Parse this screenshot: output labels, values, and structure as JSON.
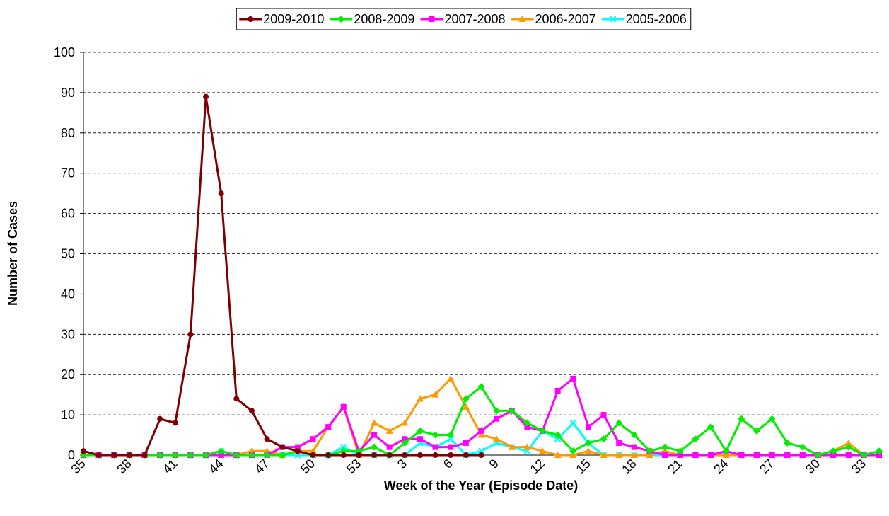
{
  "chart_data": {
    "type": "line",
    "x_label": "Week of the Year (Episode Date)",
    "y_label": "Number of Cases",
    "categories": [
      "35",
      null,
      null,
      "38",
      null,
      null,
      "41",
      null,
      null,
      "44",
      null,
      null,
      "47",
      null,
      null,
      "50",
      null,
      null,
      "53",
      null,
      null,
      "3",
      null,
      null,
      "6",
      null,
      null,
      "9",
      null,
      null,
      "12",
      null,
      null,
      "15",
      null,
      null,
      "18",
      null,
      null,
      "21",
      null,
      null,
      "24",
      null,
      null,
      "27",
      null,
      null,
      "30",
      null,
      null,
      "33",
      null
    ],
    "series": [
      {
        "name": "2009-2010",
        "color": "#800000",
        "marker": "circle",
        "values": [
          1,
          0,
          0,
          0,
          0,
          9,
          8,
          30,
          89,
          65,
          14,
          11,
          4,
          2,
          1,
          0,
          0,
          0,
          0,
          0,
          0,
          0,
          0,
          0,
          0,
          0,
          0,
          null,
          null,
          null,
          null,
          null,
          null,
          null,
          null,
          null,
          null,
          null,
          null,
          null,
          null,
          null,
          null,
          null,
          null,
          null,
          null,
          null,
          null,
          null,
          null,
          null,
          null
        ]
      },
      {
        "name": "2008-2009",
        "color": "#00ee00",
        "marker": "diamond",
        "values": [
          0,
          0,
          0,
          0,
          0,
          0,
          0,
          0,
          0,
          1,
          0,
          0,
          0,
          0,
          1,
          0,
          0,
          1,
          1,
          2,
          0,
          3,
          6,
          5,
          5,
          14,
          17,
          11,
          11,
          8,
          6,
          5,
          1,
          3,
          4,
          8,
          5,
          1,
          2,
          1,
          4,
          7,
          1,
          9,
          6,
          9,
          3,
          2,
          0,
          1,
          2,
          0,
          1
        ]
      },
      {
        "name": "2007-2008",
        "color": "#ff00ff",
        "marker": "square",
        "values": [
          0,
          0,
          0,
          0,
          0,
          0,
          0,
          0,
          0,
          0,
          0,
          0,
          0,
          2,
          2,
          4,
          7,
          12,
          1,
          5,
          2,
          4,
          4,
          2,
          2,
          3,
          6,
          9,
          11,
          7,
          6,
          16,
          19,
          7,
          10,
          3,
          2,
          1,
          0,
          0,
          0,
          0,
          1,
          0,
          0,
          0,
          0,
          0,
          0,
          0,
          0,
          0,
          0
        ]
      },
      {
        "name": "2006-2007",
        "color": "#ff9900",
        "marker": "triangle",
        "values": [
          0,
          0,
          0,
          0,
          0,
          0,
          0,
          0,
          0,
          0,
          0,
          1,
          1,
          0,
          1,
          1,
          7,
          12,
          0,
          8,
          6,
          8,
          14,
          15,
          19,
          12,
          5,
          4,
          2,
          2,
          1,
          0,
          0,
          1,
          0,
          0,
          0,
          0,
          1,
          0,
          0,
          0,
          0,
          0,
          0,
          0,
          0,
          0,
          0,
          1,
          3,
          0,
          0
        ]
      },
      {
        "name": "2005-2006",
        "color": "#00ffff",
        "marker": "x",
        "values": [
          0,
          0,
          0,
          0,
          0,
          0,
          0,
          0,
          0,
          1,
          0,
          0,
          0,
          0,
          0,
          0,
          0,
          2,
          0,
          0,
          0,
          0,
          3,
          2,
          4,
          0,
          1,
          3,
          2,
          1,
          6,
          4,
          8,
          3,
          0,
          0,
          0,
          0,
          0,
          0,
          0,
          0,
          0,
          0,
          0,
          0,
          0,
          0,
          0,
          0,
          0,
          0,
          0
        ]
      }
    ],
    "ylim": [
      0,
      100
    ],
    "yticks": [
      0,
      10,
      20,
      30,
      40,
      50,
      60,
      70,
      80,
      90,
      100
    ],
    "grid": true,
    "legend": "top"
  }
}
